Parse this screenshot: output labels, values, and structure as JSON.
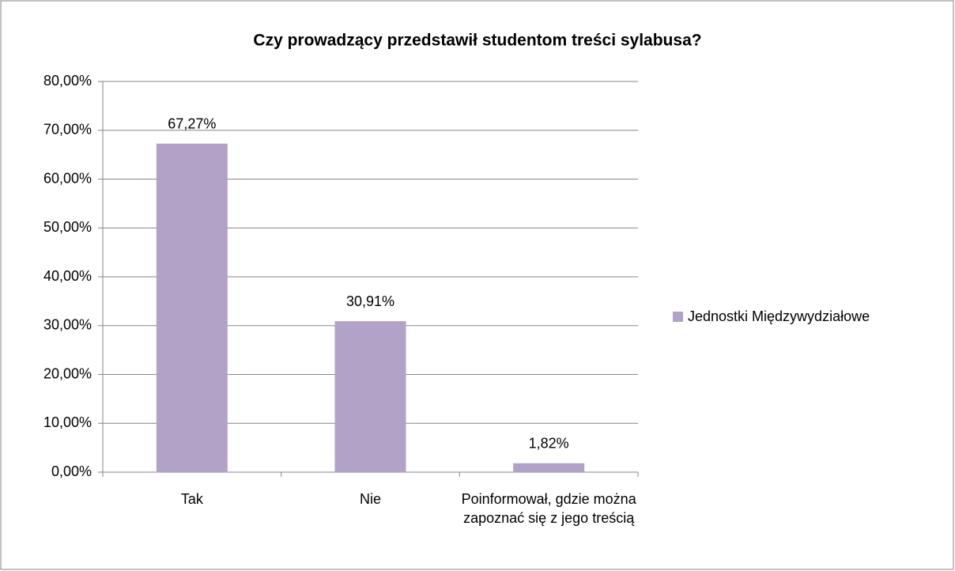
{
  "chart_data": {
    "type": "bar",
    "title": "Czy prowadzący przedstawił studentom treści sylabusa?",
    "categories": [
      "Tak",
      "Nie",
      "Poinformował, gdzie można zapoznać się z jego treścią"
    ],
    "series": [
      {
        "name": "Jednostki Międzywydziałowe",
        "color": "#b3a2c7",
        "values": [
          67.27,
          30.91,
          1.82
        ],
        "value_labels": [
          "67,27%",
          "30,91%",
          "1,82%"
        ]
      }
    ],
    "ylim": [
      0,
      80
    ],
    "yticks": [
      {
        "value": 0,
        "label": "0,00%"
      },
      {
        "value": 10,
        "label": "10,00%"
      },
      {
        "value": 20,
        "label": "20,00%"
      },
      {
        "value": 30,
        "label": "30,00%"
      },
      {
        "value": 40,
        "label": "40,00%"
      },
      {
        "value": 50,
        "label": "50,00%"
      },
      {
        "value": 60,
        "label": "60,00%"
      },
      {
        "value": 70,
        "label": "70,00%"
      },
      {
        "value": 80,
        "label": "80,00%"
      }
    ],
    "grid": true,
    "legend": "right"
  }
}
